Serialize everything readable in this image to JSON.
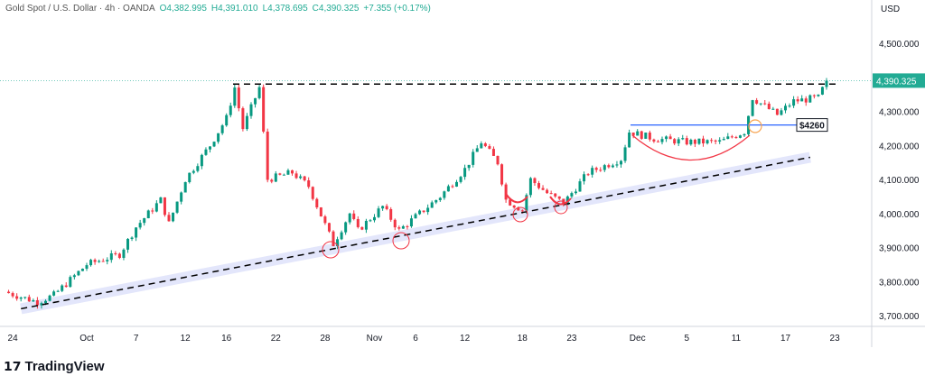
{
  "header": {
    "symbol": "Gold Spot / U.S. Dollar · 4h · OANDA",
    "open": "O4,382.995",
    "high": "H4,391.010",
    "low": "L4,378.695",
    "close": "C4,390.325",
    "change": "+7.355 (+0.17%)"
  },
  "currency": "USD",
  "brand": "TradingView",
  "colors": {
    "up": "#089981",
    "down": "#f23645",
    "last": "#22ab94",
    "trend": "#000000",
    "band": "#e3e6fb",
    "level": "#2962ff",
    "circle": "#f23645",
    "orange": "#f7a350"
  },
  "chart_data": {
    "type": "candlestick",
    "title": "Gold Spot / U.S. Dollar · 4h · OANDA",
    "ylim": [
      3650,
      4560
    ],
    "yticks": [
      "4,500.000",
      "4,300.000",
      "4,200.000",
      "4,100.000",
      "4,000.000",
      "3,900.000",
      "3,800.000",
      "3,700.000"
    ],
    "ytick_values": [
      4500,
      4300,
      4200,
      4100,
      4000,
      3900,
      3800,
      3700
    ],
    "xticks": [
      "24",
      "Oct",
      "7",
      "12",
      "16",
      "22",
      "28",
      "Nov",
      "6",
      "12",
      "18",
      "23",
      "Dec",
      "5",
      "11",
      "17",
      "23"
    ],
    "xtick_t": [
      1,
      10,
      16,
      22,
      27,
      33,
      39,
      45,
      50,
      56,
      63,
      69,
      77,
      83,
      89,
      95,
      101
    ],
    "last_price": "4,390.325",
    "last_value": 4390.325,
    "price_path": [
      [
        0,
        3770
      ],
      [
        4,
        3740
      ],
      [
        6,
        3760
      ],
      [
        10,
        3850
      ],
      [
        14,
        3880
      ],
      [
        16,
        3960
      ],
      [
        19,
        4040
      ],
      [
        20,
        3970
      ],
      [
        22,
        4100
      ],
      [
        25,
        4200
      ],
      [
        27,
        4280
      ],
      [
        28,
        4370
      ],
      [
        29,
        4250
      ],
      [
        31,
        4370
      ],
      [
        32,
        4100
      ],
      [
        35,
        4120
      ],
      [
        37,
        4080
      ],
      [
        40,
        3910
      ],
      [
        42,
        4000
      ],
      [
        43,
        3950
      ],
      [
        46,
        4020
      ],
      [
        48,
        3950
      ],
      [
        50,
        3990
      ],
      [
        53,
        4050
      ],
      [
        56,
        4130
      ],
      [
        58,
        4210
      ],
      [
        60,
        4150
      ],
      [
        61,
        4040
      ],
      [
        63,
        4010
      ],
      [
        64,
        4100
      ],
      [
        66,
        4060
      ],
      [
        68,
        4030
      ],
      [
        71,
        4120
      ],
      [
        75,
        4160
      ],
      [
        76,
        4240
      ],
      [
        79,
        4220
      ],
      [
        83,
        4210
      ],
      [
        87,
        4210
      ],
      [
        90,
        4240
      ],
      [
        91,
        4340
      ],
      [
        94,
        4290
      ],
      [
        96,
        4330
      ],
      [
        99,
        4340
      ],
      [
        100,
        4390
      ]
    ],
    "annotations": {
      "resistance": 4380,
      "level_label": "$4260",
      "level": 4260,
      "trendline": [
        [
          2,
          3720
        ],
        [
          98,
          4165
        ]
      ]
    }
  }
}
